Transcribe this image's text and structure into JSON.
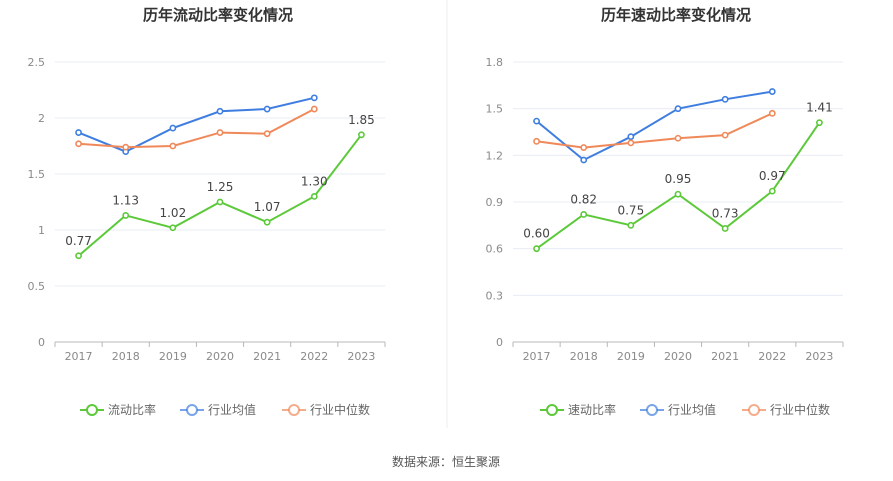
{
  "source": "数据来源：恒生聚源",
  "chart_data": [
    {
      "type": "line",
      "title": "历年流动比率变化情况",
      "categories": [
        "2017",
        "2018",
        "2019",
        "2020",
        "2021",
        "2022",
        "2023"
      ],
      "y_ticks": [
        "0",
        "0.5",
        "1",
        "1.5",
        "2",
        "2.5"
      ],
      "ylim": [
        0,
        2.5
      ],
      "series": [
        {
          "name": "流动比率",
          "color": "#5cc93a",
          "values": [
            0.77,
            1.13,
            1.02,
            1.25,
            1.07,
            1.3,
            1.85
          ],
          "labels": [
            "0.77",
            "1.13",
            "1.02",
            "1.25",
            "1.07",
            "1.30",
            "1.85"
          ]
        },
        {
          "name": "行业均值",
          "color": "#3f7ee0",
          "values": [
            1.87,
            1.7,
            1.91,
            2.06,
            2.08,
            2.18,
            null
          ]
        },
        {
          "name": "行业中位数",
          "color": "#f0895a",
          "values": [
            1.77,
            1.74,
            1.75,
            1.87,
            1.86,
            2.08,
            null
          ]
        }
      ],
      "legend": "bottom-center"
    },
    {
      "type": "line",
      "title": "历年速动比率变化情况",
      "categories": [
        "2017",
        "2018",
        "2019",
        "2020",
        "2021",
        "2022",
        "2023"
      ],
      "y_ticks": [
        "0",
        "0.3",
        "0.6",
        "0.9",
        "1.2",
        "1.5",
        "1.8"
      ],
      "ylim": [
        0,
        1.8
      ],
      "series": [
        {
          "name": "速动比率",
          "color": "#5cc93a",
          "values": [
            0.6,
            0.82,
            0.75,
            0.95,
            0.73,
            0.97,
            1.41
          ],
          "labels": [
            "0.60",
            "0.82",
            "0.75",
            "0.95",
            "0.73",
            "0.97",
            "1.41"
          ]
        },
        {
          "name": "行业均值",
          "color": "#3f7ee0",
          "values": [
            1.42,
            1.17,
            1.32,
            1.5,
            1.56,
            1.61,
            null
          ]
        },
        {
          "name": "行业中位数",
          "color": "#f0895a",
          "values": [
            1.29,
            1.25,
            1.28,
            1.31,
            1.33,
            1.47,
            null
          ]
        }
      ],
      "legend": "bottom-center"
    }
  ]
}
